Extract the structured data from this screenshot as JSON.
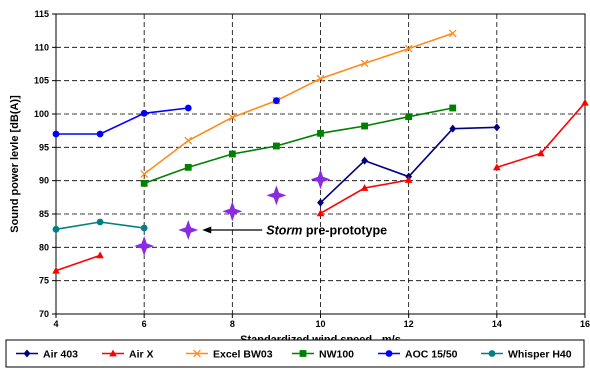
{
  "chart_data": {
    "type": "line",
    "title": "",
    "xlabel": "Standardized wind speed - m/s",
    "ylabel": "Sound power levle [dB(A)]",
    "xlim": [
      4,
      16
    ],
    "ylim": [
      70,
      115
    ],
    "xticks": [
      "4",
      "6",
      "8",
      "10",
      "12",
      "14",
      "16"
    ],
    "yticks": [
      "70",
      "75",
      "80",
      "85",
      "90",
      "95",
      "100",
      "105",
      "110",
      "115"
    ],
    "grid": true,
    "legend_position": "bottom",
    "series": [
      {
        "name": "Air 403",
        "color": "#000080",
        "marker": "diamond",
        "x": [
          10,
          11,
          12,
          13,
          14
        ],
        "y": [
          86.7,
          93.0,
          90.6,
          97.8,
          98.0
        ]
      },
      {
        "name": "Air X",
        "color": "#ff0000",
        "marker": "triangle",
        "segments": [
          {
            "x": [
              4,
              5
            ],
            "y": [
              76.5,
              78.8
            ]
          },
          {
            "x": [
              10,
              11,
              12
            ],
            "y": [
              85.1,
              88.9,
              90.1
            ]
          },
          {
            "x": [
              14,
              15,
              16
            ],
            "y": [
              92.0,
              94.1,
              101.7
            ]
          }
        ]
      },
      {
        "name": "Excel BW03",
        "color": "#ff8c1a",
        "marker": "x",
        "x": [
          6,
          7,
          8,
          9,
          10,
          11,
          12,
          13
        ],
        "y": [
          91.0,
          96.0,
          99.5,
          102.0,
          105.3,
          107.6,
          109.8,
          112.1
        ]
      },
      {
        "name": "NW100",
        "color": "#008000",
        "marker": "square",
        "x": [
          6,
          7,
          8,
          9,
          10,
          11,
          12,
          13
        ],
        "y": [
          89.6,
          92.0,
          94.0,
          95.2,
          97.1,
          98.2,
          99.6,
          100.9
        ]
      },
      {
        "name": "AOC 15/50",
        "color": "#0000ff",
        "marker": "circle",
        "segments": [
          {
            "x": [
              4,
              5,
              6,
              7
            ],
            "y": [
              97.0,
              97.0,
              100.1,
              100.9
            ]
          },
          {
            "x": [
              9
            ],
            "y": [
              102.0
            ]
          }
        ]
      },
      {
        "name": "Whisper H40",
        "color": "#008080",
        "marker": "circle",
        "x": [
          4,
          5,
          6
        ],
        "y": [
          82.7,
          83.8,
          82.9
        ]
      }
    ],
    "storm_points": {
      "color": "#8a2be2",
      "x": [
        6,
        7,
        8,
        9,
        10
      ],
      "y": [
        80.2,
        82.6,
        85.4,
        87.8,
        90.2
      ]
    },
    "annotation": {
      "italic_part": "Storm",
      "rest": " pre-prototype",
      "points_to": {
        "x": 7,
        "y": 82.6
      }
    }
  }
}
